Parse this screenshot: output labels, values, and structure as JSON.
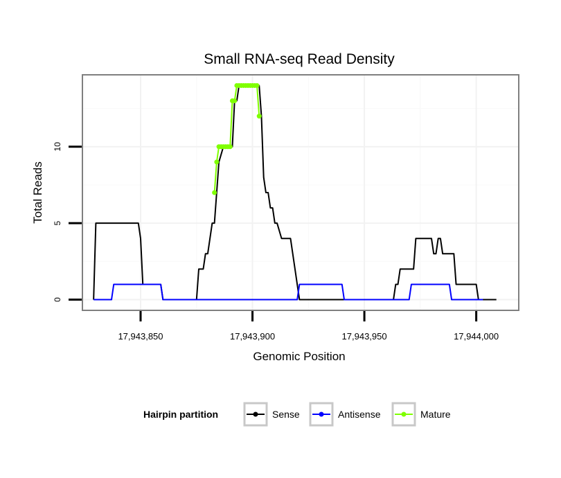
{
  "chart_data": {
    "type": "line",
    "title": "Small RNA-seq Read Density",
    "xlabel": "Genomic Position",
    "ylabel": "Total Reads",
    "xlim": [
      17943824,
      17944019
    ],
    "ylim": [
      -0.7,
      14.7
    ],
    "x_ticks": [
      17943850,
      17943900,
      17943950,
      17944000
    ],
    "x_tick_labels": [
      "17,943,850",
      "17,943,900",
      "17,943,950",
      "17,944,000"
    ],
    "y_ticks": [
      0,
      5,
      10
    ],
    "y_tick_labels": [
      "0",
      "5",
      "10"
    ],
    "grid": true,
    "legend": {
      "title": "Hairpin partition",
      "position": "bottom",
      "entries": [
        {
          "name": "Sense",
          "color": "#000000"
        },
        {
          "name": "Antisense",
          "color": "#0000ff"
        },
        {
          "name": "Mature",
          "color": "#7fff00"
        }
      ]
    },
    "series": [
      {
        "name": "Sense",
        "color": "#000000",
        "x": [
          17943829,
          17943830,
          17943831,
          17943849,
          17943850,
          17943851,
          17943852,
          17943859,
          17943860,
          17943861,
          17943875,
          17943876,
          17943878,
          17943879,
          17943880,
          17943882,
          17943883,
          17943884,
          17943885,
          17943887,
          17943888,
          17943891,
          17943892,
          17943893,
          17943894,
          17943903,
          17943904,
          17943905,
          17943906,
          17943907,
          17943908,
          17943909,
          17943910,
          17943911,
          17943913,
          17943914,
          17943915,
          17943917,
          17943918,
          17943919,
          17943920,
          17943921,
          17943963,
          17943964,
          17943965,
          17943966,
          17943967,
          17943968,
          17943969,
          17943972,
          17943973,
          17943979,
          17943980,
          17943981,
          17943982,
          17943983,
          17943984,
          17943985,
          17943990,
          17943991,
          17944000,
          17944001,
          17944009
        ],
        "y": [
          0,
          5,
          5,
          5,
          4,
          1,
          1,
          1,
          0,
          0,
          0,
          2,
          2,
          3,
          3,
          5,
          5,
          7,
          9,
          10,
          10,
          10,
          13,
          13,
          14,
          14,
          12,
          8,
          7,
          7,
          6,
          6,
          5,
          5,
          4,
          4,
          4,
          4,
          3,
          2,
          1,
          0,
          0,
          1,
          1,
          2,
          2,
          2,
          2,
          2,
          4,
          4,
          4,
          3,
          3,
          4,
          4,
          3,
          3,
          1,
          1,
          0,
          0
        ]
      },
      {
        "name": "Antisense",
        "color": "#0000ff",
        "x": [
          17943829,
          17943837,
          17943838,
          17943859,
          17943860,
          17943920,
          17943921,
          17943940,
          17943941,
          17943970,
          17943971,
          17943988,
          17943989,
          17944003
        ],
        "y": [
          0,
          0,
          1,
          1,
          0,
          0,
          1,
          1,
          0,
          0,
          1,
          1,
          0,
          0
        ]
      },
      {
        "name": "Mature",
        "color": "#7fff00",
        "x": [
          17943883,
          17943884,
          17943885,
          17943886,
          17943887,
          17943888,
          17943889,
          17943890,
          17943891,
          17943892,
          17943893,
          17943894,
          17943895,
          17943896,
          17943897,
          17943898,
          17943899,
          17943900,
          17943901,
          17943902,
          17943903
        ],
        "y": [
          7,
          9,
          10,
          10,
          10,
          10,
          10,
          10,
          13,
          13,
          14,
          14,
          14,
          14,
          14,
          14,
          14,
          14,
          14,
          14,
          12
        ]
      }
    ]
  }
}
